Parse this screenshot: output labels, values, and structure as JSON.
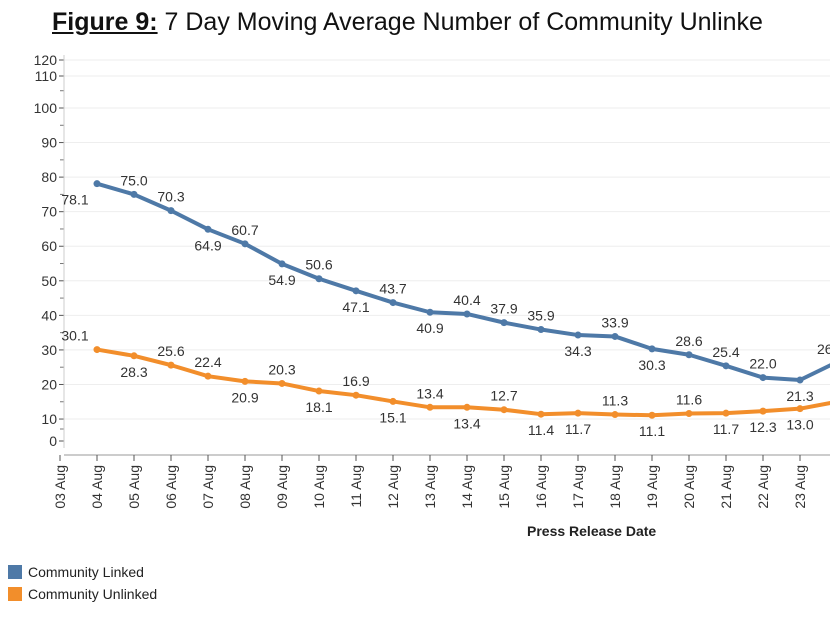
{
  "colors": {
    "linked": "#4e79a7",
    "unlinked": "#f28e2b"
  },
  "chart_data": {
    "type": "line",
    "title_prefix": "Figure 9:",
    "title": "7 Day Moving Average Number of Community Unlinke",
    "xlabel": "Press Release Date",
    "ylabel": "",
    "ylim": [
      0,
      120
    ],
    "yticks": [
      0,
      10,
      20,
      30,
      40,
      50,
      60,
      70,
      80,
      90,
      100,
      110,
      120
    ],
    "grid": true,
    "legend": "bottom-left",
    "categories": [
      "03 Aug",
      "04 Aug",
      "05 Aug",
      "06 Aug",
      "07 Aug",
      "08 Aug",
      "09 Aug",
      "10 Aug",
      "11 Aug",
      "12 Aug",
      "13 Aug",
      "14 Aug",
      "15 Aug",
      "16 Aug",
      "17 Aug",
      "18 Aug",
      "19 Aug",
      "20 Aug",
      "21 Aug",
      "22 Aug",
      "23 Aug"
    ],
    "series": [
      {
        "name": "Community Linked",
        "values": [
          null,
          78.1,
          75.0,
          70.3,
          64.9,
          60.7,
          54.9,
          50.6,
          47.1,
          43.7,
          40.9,
          40.4,
          37.9,
          35.9,
          34.3,
          33.9,
          30.3,
          28.6,
          25.4,
          22.0,
          21.3
        ],
        "next_value_partial": "26"
      },
      {
        "name": "Community Unlinked",
        "values": [
          null,
          30.1,
          28.3,
          25.6,
          22.4,
          20.9,
          20.3,
          18.1,
          16.9,
          15.1,
          13.4,
          13.4,
          12.7,
          11.4,
          11.7,
          11.3,
          11.1,
          11.6,
          11.7,
          12.3,
          13.0
        ]
      }
    ]
  }
}
